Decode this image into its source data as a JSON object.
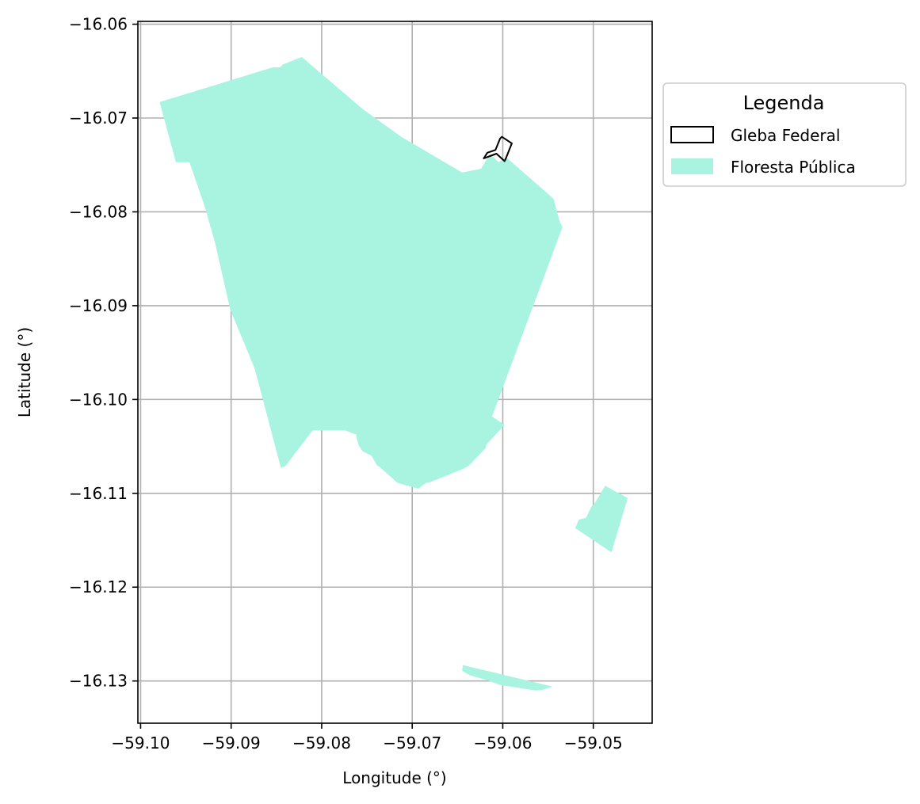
{
  "map": {
    "axes": {
      "xlabel": "Longitude (°)",
      "ylabel": "Latitude (°)",
      "xlim": [
        -59.1003,
        -59.0435
      ],
      "ylim": [
        -16.1345,
        -16.0597
      ],
      "xticks": [
        -59.1,
        -59.09,
        -59.08,
        -59.07,
        -59.06,
        -59.05
      ],
      "xtick_labels": [
        "−59.10",
        "−59.09",
        "−59.08",
        "−59.07",
        "−59.06",
        "−59.05"
      ],
      "yticks": [
        -16.06,
        -16.07,
        -16.08,
        -16.09,
        -16.1,
        -16.11,
        -16.12,
        -16.13
      ],
      "ytick_labels": [
        "−16.06",
        "−16.07",
        "−16.08",
        "−16.09",
        "−16.10",
        "−16.11",
        "−16.12",
        "−16.13"
      ],
      "grid": true
    },
    "legend": {
      "title": "Legenda",
      "placement": "outside upper right",
      "items": [
        {
          "label": "Gleba Federal",
          "style": "outline",
          "edge_color": "#000000",
          "fill": "none"
        },
        {
          "label": "Floresta Pública",
          "style": "fill",
          "fill": "#a8f4e1"
        }
      ]
    },
    "colors": {
      "floresta_fill": "#a8f4e1",
      "gleba_edge": "#000000",
      "grid": "#b0b0b0",
      "frame": "#000000"
    },
    "layers": {
      "floresta_publica": [
        {
          "name": "main-forest-polygon",
          "coords": [
            [
              -59.0979,
              -16.0683
            ],
            [
              -59.0854,
              -16.0646
            ],
            [
              -59.0846,
              -16.0646
            ],
            [
              -59.0843,
              -16.0643
            ],
            [
              -59.0822,
              -16.0635
            ],
            [
              -59.0754,
              -16.0691
            ],
            [
              -59.0712,
              -16.072
            ],
            [
              -59.0645,
              -16.0758
            ],
            [
              -59.0624,
              -16.0754
            ],
            [
              -59.0614,
              -16.0738
            ],
            [
              -59.0605,
              -16.0747
            ],
            [
              -59.0596,
              -16.0742
            ],
            [
              -59.0544,
              -16.0786
            ],
            [
              -59.0537,
              -16.0811
            ],
            [
              -59.0534,
              -16.0816
            ],
            [
              -59.0611,
              -16.1016
            ],
            [
              -59.0612,
              -16.1018
            ],
            [
              -59.0598,
              -16.1027
            ],
            [
              -59.0618,
              -16.1048
            ],
            [
              -59.0619,
              -16.1052
            ],
            [
              -59.0638,
              -16.1071
            ],
            [
              -59.0644,
              -16.1074
            ],
            [
              -59.068,
              -16.1088
            ],
            [
              -59.0685,
              -16.1089
            ],
            [
              -59.0693,
              -16.1095
            ],
            [
              -59.0697,
              -16.1094
            ],
            [
              -59.0701,
              -16.1093
            ],
            [
              -59.0716,
              -16.1089
            ],
            [
              -59.0736,
              -16.1072
            ],
            [
              -59.0739,
              -16.107
            ],
            [
              -59.0745,
              -16.106
            ],
            [
              -59.0755,
              -16.1055
            ],
            [
              -59.0759,
              -16.1049
            ],
            [
              -59.0761,
              -16.1043
            ],
            [
              -59.0762,
              -16.1037
            ],
            [
              -59.0766,
              -16.1036
            ],
            [
              -59.0774,
              -16.1033
            ],
            [
              -59.0798,
              -16.1033
            ],
            [
              -59.081,
              -16.1033
            ],
            [
              -59.084,
              -16.1071
            ],
            [
              -59.0845,
              -16.1073
            ],
            [
              -59.0874,
              -16.0967
            ],
            [
              -59.0901,
              -16.0904
            ],
            [
              -59.0918,
              -16.0832
            ],
            [
              -59.0929,
              -16.0795
            ],
            [
              -59.0946,
              -16.0747
            ],
            [
              -59.0961,
              -16.0747
            ]
          ]
        },
        {
          "name": "east-forest-polygon",
          "coords": [
            [
              -59.0487,
              -16.1092
            ],
            [
              -59.0462,
              -16.1105
            ],
            [
              -59.048,
              -16.1163
            ],
            [
              -59.052,
              -16.1137
            ],
            [
              -59.0516,
              -16.1128
            ],
            [
              -59.0508,
              -16.1126
            ],
            [
              -59.0502,
              -16.1114
            ],
            [
              -59.0498,
              -16.111
            ]
          ]
        },
        {
          "name": "south-forest-polygon",
          "coords": [
            [
              -59.0644,
              -16.1283
            ],
            [
              -59.0545,
              -16.1306
            ],
            [
              -59.0558,
              -16.131
            ],
            [
              -59.0565,
              -16.131
            ],
            [
              -59.0604,
              -16.1304
            ],
            [
              -59.0618,
              -16.1299
            ],
            [
              -59.0636,
              -16.1294
            ],
            [
              -59.0645,
              -16.1289
            ]
          ]
        }
      ],
      "gleba_federal": [
        {
          "name": "gleba-federal-polygon",
          "coords": [
            [
              -59.0621,
              -16.0743
            ],
            [
              -59.0607,
              -16.0738
            ],
            [
              -59.0598,
              -16.0746
            ],
            [
              -59.0597,
              -16.0744
            ],
            [
              -59.059,
              -16.0727
            ],
            [
              -59.0601,
              -16.072
            ],
            [
              -59.0603,
              -16.0722
            ],
            [
              -59.0608,
              -16.0734
            ],
            [
              -59.0617,
              -16.0737
            ]
          ]
        }
      ]
    }
  }
}
